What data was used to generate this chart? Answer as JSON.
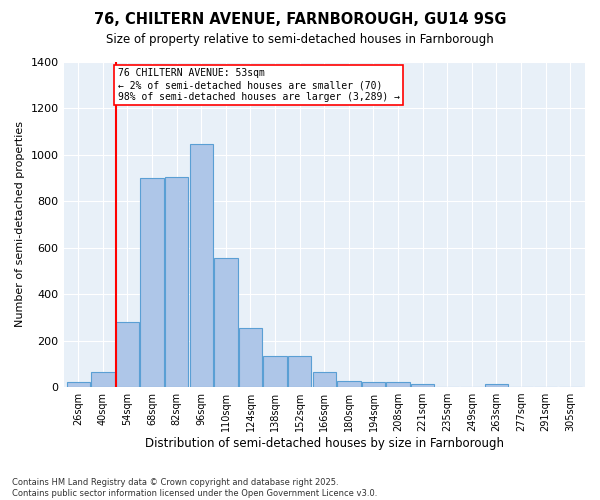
{
  "title": "76, CHILTERN AVENUE, FARNBOROUGH, GU14 9SG",
  "subtitle": "Size of property relative to semi-detached houses in Farnborough",
  "xlabel": "Distribution of semi-detached houses by size in Farnborough",
  "ylabel": "Number of semi-detached properties",
  "footnote1": "Contains HM Land Registry data © Crown copyright and database right 2025.",
  "footnote2": "Contains public sector information licensed under the Open Government Licence v3.0.",
  "annotation_line1": "76 CHILTERN AVENUE: 53sqm",
  "annotation_line2": "← 2% of semi-detached houses are smaller (70)",
  "annotation_line3": "98% of semi-detached houses are larger (3,289) →",
  "bar_labels": [
    "26sqm",
    "40sqm",
    "54sqm",
    "68sqm",
    "82sqm",
    "96sqm",
    "110sqm",
    "124sqm",
    "138sqm",
    "152sqm",
    "166sqm",
    "180sqm",
    "194sqm",
    "208sqm",
    "221sqm",
    "235sqm",
    "249sqm",
    "263sqm",
    "277sqm",
    "291sqm",
    "305sqm"
  ],
  "bar_values": [
    20,
    65,
    280,
    900,
    905,
    1045,
    555,
    255,
    135,
    135,
    65,
    25,
    20,
    20,
    12,
    0,
    0,
    12,
    0,
    0,
    0
  ],
  "bar_color": "#aec6e8",
  "bar_edge_color": "#5a9fd4",
  "red_line_index": 2,
  "background_color": "#e8f0f8",
  "ylim": [
    0,
    1400
  ],
  "yticks": [
    0,
    200,
    400,
    600,
    800,
    1000,
    1200,
    1400
  ],
  "fig_width": 6.0,
  "fig_height": 5.0,
  "dpi": 100
}
